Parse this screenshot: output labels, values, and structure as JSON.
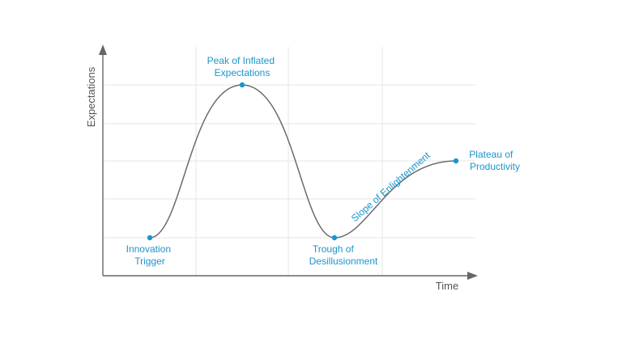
{
  "axes": {
    "x_label": "Time",
    "y_label": "Expectations"
  },
  "phases": [
    {
      "id": "innovation",
      "lines": [
        "Innovation",
        "Trigger"
      ]
    },
    {
      "id": "peak",
      "lines": [
        "Peak of Inflated",
        "Expectations"
      ]
    },
    {
      "id": "trough",
      "lines": [
        "Trough of",
        "Desillusionment"
      ]
    },
    {
      "id": "slope",
      "lines": [
        "Slope of Enlightenment"
      ]
    },
    {
      "id": "plateau",
      "lines": [
        "Plateau of",
        "Productivity"
      ]
    }
  ],
  "colors": {
    "curve": "#6b6b6b",
    "accent": "#1a96cc",
    "axis": "#666666",
    "grid": "#e6e6e6"
  }
}
